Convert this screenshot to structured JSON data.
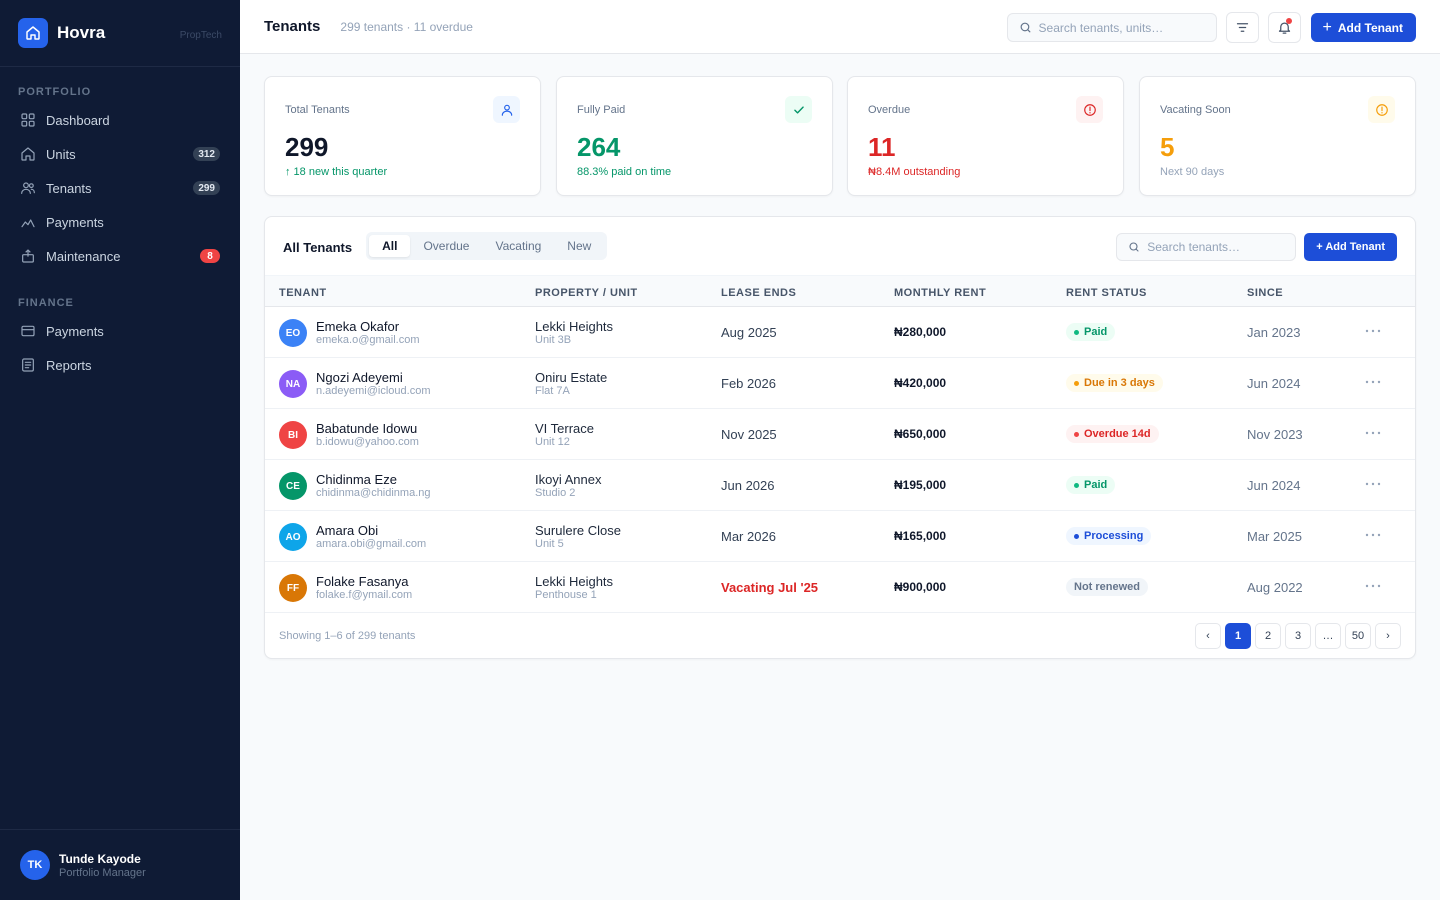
{
  "brand": {
    "name": "Hovra",
    "tag": "PropTech",
    "logo_icon": "home-icon"
  },
  "sidebar": {
    "sections": [
      {
        "title": "PORTFOLIO",
        "items": [
          {
            "label": "Dashboard",
            "icon": "grid-icon",
            "badge": ""
          },
          {
            "label": "Units",
            "icon": "home-icon",
            "badge": "312"
          },
          {
            "label": "Tenants",
            "icon": "users-icon",
            "badge": "299"
          },
          {
            "label": "Payments",
            "icon": "chart-line-icon",
            "badge": ""
          },
          {
            "label": "Maintenance",
            "icon": "toolbox-icon",
            "badge": "8"
          }
        ]
      },
      {
        "title": "FINANCE",
        "items": [
          {
            "label": "Payments",
            "icon": "card-icon",
            "badge": ""
          },
          {
            "label": "Reports",
            "icon": "report-icon",
            "badge": ""
          }
        ]
      }
    ],
    "user": {
      "initials": "TK",
      "name": "Tunde Kayode",
      "role": "Portfolio Manager"
    }
  },
  "header": {
    "title": "Tenants",
    "subtitle": "299 tenants · 11 overdue",
    "search_placeholder": "Search tenants, units…",
    "add_label": "Add Tenant"
  },
  "stats": [
    {
      "label": "Total Tenants",
      "value": "299",
      "note": "↑ 18 new this quarter",
      "icon": "user-icon",
      "value_color": "#0f172a",
      "note_color": "#059669",
      "icon_color": "#2563eb",
      "icon_bg": "#eff6ff"
    },
    {
      "label": "Fully Paid",
      "value": "264",
      "note": "88.3% paid on time",
      "icon": "check-icon",
      "value_color": "#059669",
      "note_color": "#059669",
      "icon_color": "#059669",
      "icon_bg": "#ecfdf5"
    },
    {
      "label": "Overdue",
      "value": "11",
      "note": "₦8.4M outstanding",
      "icon": "alert-circle-icon",
      "value_color": "#dc2626",
      "note_color": "#dc2626",
      "icon_color": "#dc2626",
      "icon_bg": "#fef2f2"
    },
    {
      "label": "Vacating Soon",
      "value": "5",
      "note": "Next 90 days",
      "icon": "alert-circle-icon",
      "value_color": "#f59e0b",
      "note_color": "#94a3b8",
      "icon_color": "#f59e0b",
      "icon_bg": "#fffbeb"
    }
  ],
  "table": {
    "title": "All Tenants",
    "tabs": [
      "All",
      "Overdue",
      "Vacating",
      "New"
    ],
    "active_tab": "All",
    "search_placeholder": "Search tenants…",
    "add_label": "+ Add Tenant",
    "columns": [
      "TENANT",
      "PROPERTY / UNIT",
      "LEASE ENDS",
      "MONTHLY RENT",
      "RENT STATUS",
      "SINCE"
    ],
    "rows": [
      {
        "initials": "EO",
        "avatar_color": "#3b82f6",
        "name": "Emeka Okafor",
        "email": "emeka.o@gmail.com",
        "property": "Lekki Heights",
        "unit": "Unit 3B",
        "lease": "Aug 2025",
        "lease_alert": false,
        "rent": "₦280,000",
        "status": "Paid",
        "status_kind": "paid",
        "since": "Jan 2023"
      },
      {
        "initials": "NA",
        "avatar_color": "#8b5cf6",
        "name": "Ngozi Adeyemi",
        "email": "n.adeyemi@icloud.com",
        "property": "Oniru Estate",
        "unit": "Flat 7A",
        "lease": "Feb 2026",
        "lease_alert": false,
        "rent": "₦420,000",
        "status": "Due in 3 days",
        "status_kind": "due",
        "since": "Jun 2024"
      },
      {
        "initials": "BI",
        "avatar_color": "#ef4444",
        "name": "Babatunde Idowu",
        "email": "b.idowu@yahoo.com",
        "property": "VI Terrace",
        "unit": "Unit 12",
        "lease": "Nov 2025",
        "lease_alert": false,
        "rent": "₦650,000",
        "status": "Overdue 14d",
        "status_kind": "overdue",
        "since": "Nov 2023"
      },
      {
        "initials": "CE",
        "avatar_color": "#059669",
        "name": "Chidinma Eze",
        "email": "chidinma@chidinma.ng",
        "property": "Ikoyi Annex",
        "unit": "Studio 2",
        "lease": "Jun 2026",
        "lease_alert": false,
        "rent": "₦195,000",
        "status": "Paid",
        "status_kind": "paid",
        "since": "Jun 2024"
      },
      {
        "initials": "AO",
        "avatar_color": "#0ea5e9",
        "name": "Amara Obi",
        "email": "amara.obi@gmail.com",
        "property": "Surulere Close",
        "unit": "Unit 5",
        "lease": "Mar 2026",
        "lease_alert": false,
        "rent": "₦165,000",
        "status": "Processing",
        "status_kind": "processing",
        "since": "Mar 2025"
      },
      {
        "initials": "FF",
        "avatar_color": "#d97706",
        "name": "Folake Fasanya",
        "email": "folake.f@ymail.com",
        "property": "Lekki Heights",
        "unit": "Penthouse 1",
        "lease": "Vacating Jul '25",
        "lease_alert": true,
        "rent": "₦900,000",
        "status": "Not renewed",
        "status_kind": "neutral",
        "since": "Aug 2022"
      }
    ],
    "footer": "Showing 1–6 of 299 tenants",
    "pages": [
      "‹",
      "1",
      "2",
      "3",
      "…",
      "50",
      "›"
    ],
    "active_page": "1"
  },
  "status_styles": {
    "paid": {
      "bg": "#ecfdf5",
      "fg": "#059669",
      "dot": "#10b981"
    },
    "due": {
      "bg": "#fffbeb",
      "fg": "#d97706",
      "dot": "#f59e0b"
    },
    "overdue": {
      "bg": "#fef2f2",
      "fg": "#dc2626",
      "dot": "#ef4444"
    },
    "processing": {
      "bg": "#eff6ff",
      "fg": "#1d4ed8",
      "dot": "#1d4ed8"
    },
    "neutral": {
      "bg": "#f1f5f9",
      "fg": "#64748b",
      "dot": ""
    }
  }
}
